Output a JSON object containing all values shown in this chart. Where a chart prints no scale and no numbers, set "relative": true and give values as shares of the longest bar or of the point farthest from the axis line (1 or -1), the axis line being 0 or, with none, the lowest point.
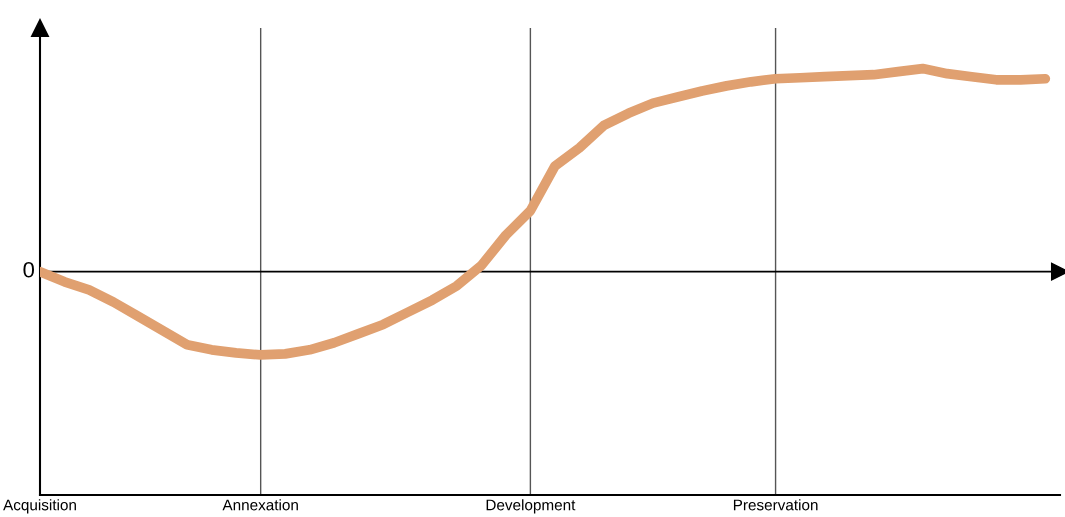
{
  "chart_data": {
    "type": "line",
    "relative": true,
    "categories": [
      "Acquisition",
      null,
      null,
      null,
      null,
      null,
      null,
      null,
      null,
      "Annexation",
      null,
      null,
      null,
      null,
      null,
      null,
      null,
      null,
      null,
      null,
      "Development",
      null,
      null,
      null,
      null,
      null,
      null,
      null,
      null,
      null,
      "Preservation",
      null,
      null,
      null,
      null,
      null,
      null,
      null,
      null,
      null,
      null,
      null
    ],
    "series": [
      {
        "color": "#e0a070",
        "values": [
          0,
          -0.05,
          -0.09,
          -0.15,
          -0.22,
          -0.29,
          -0.36,
          -0.385,
          -0.4,
          -0.41,
          -0.405,
          -0.385,
          -0.35,
          -0.305,
          -0.26,
          -0.2,
          -0.14,
          -0.07,
          0.03,
          0.18,
          0.3,
          0.52,
          0.61,
          0.72,
          0.78,
          0.83,
          0.86,
          0.89,
          0.915,
          0.935,
          0.95,
          0.955,
          0.96,
          0.965,
          0.97,
          0.985,
          1,
          0.975,
          0.96,
          0.945,
          0.945,
          0.95
        ]
      }
    ],
    "ref_lines": [
      {
        "axis": "y",
        "value": 0,
        "label": "0",
        "color": "#000000"
      }
    ],
    "grid": "x",
    "marker": "none",
    "line_style": "solid"
  }
}
